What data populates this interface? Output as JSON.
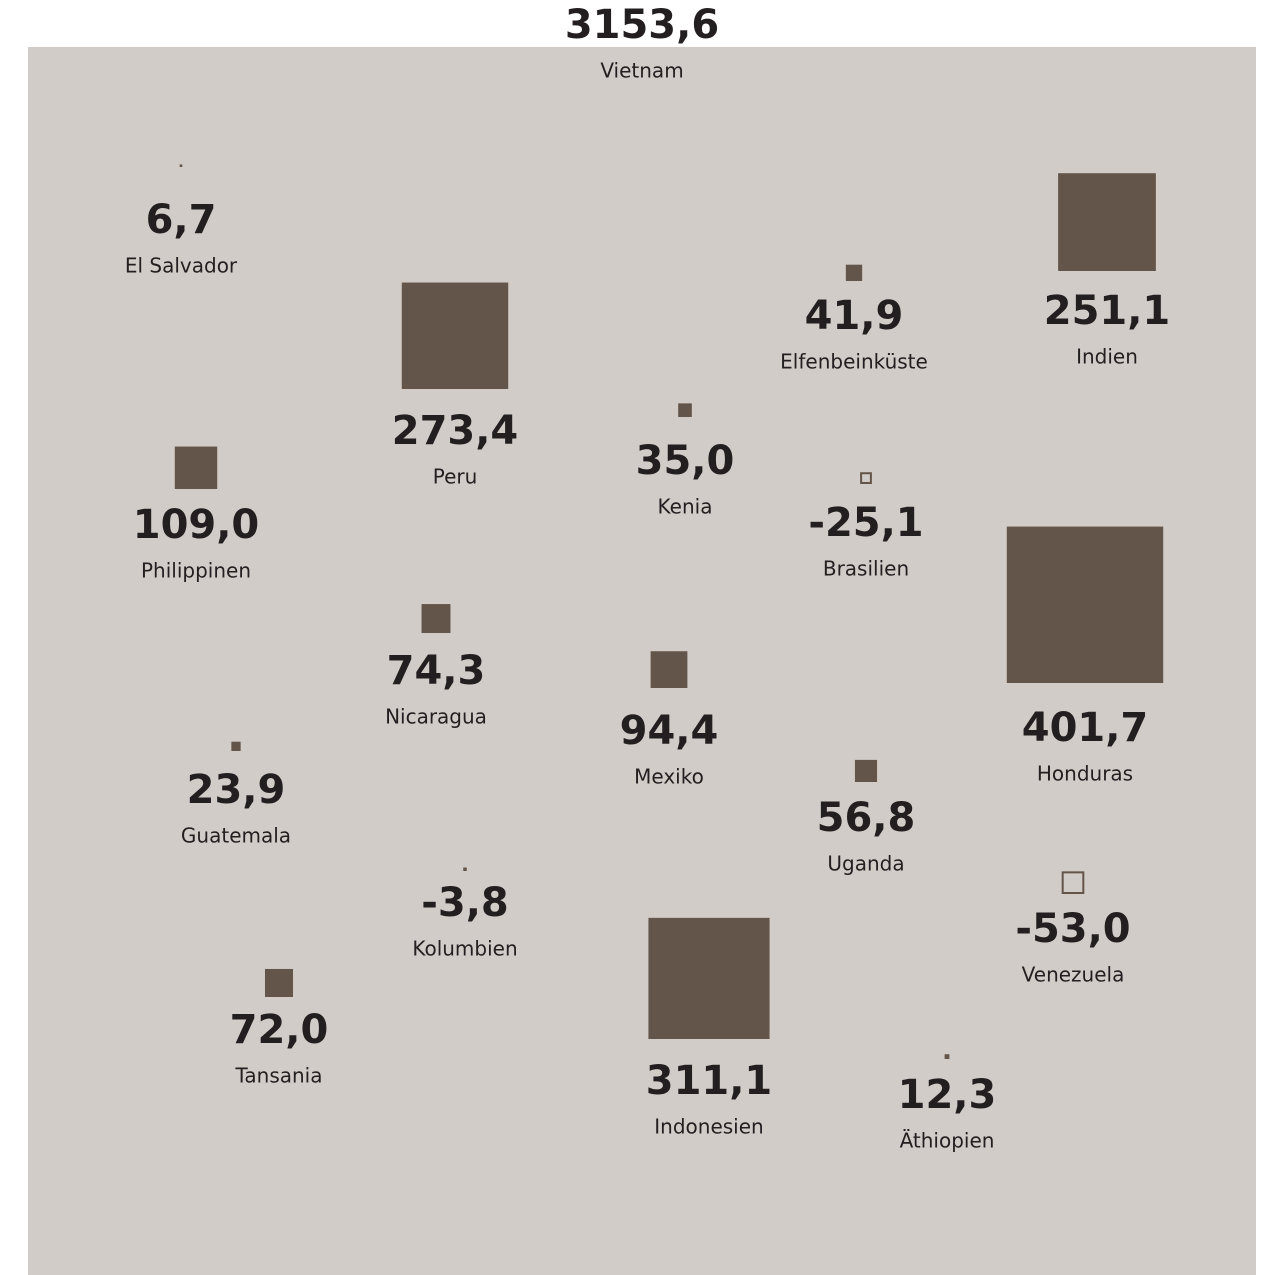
{
  "chart_data": {
    "type": "square",
    "color": "#635549",
    "categories": [
      "Vietnam",
      "El Salvador",
      "Peru",
      "Elfenbeinküste",
      "Indien",
      "Philippinen",
      "Kenia",
      "Brasilien",
      "Nicaragua",
      "Mexiko",
      "Honduras",
      "Guatemala",
      "Uganda",
      "Kolumbien",
      "Venezuela",
      "Tansania",
      "Indonesien",
      "Äthiopien"
    ],
    "values": [
      3153.6,
      6.7,
      273.4,
      41.9,
      251.1,
      109.0,
      35.0,
      -25.1,
      74.3,
      94.4,
      401.7,
      23.9,
      56.8,
      -3.8,
      -53.0,
      72.0,
      311.1,
      12.3
    ],
    "value_labels": [
      "3153,6",
      "6,7",
      "273,4",
      "41,9",
      "251,1",
      "109,0",
      "35,0",
      "-25,1",
      "74,3",
      "94,4",
      "401,7",
      "23,9",
      "56,8",
      "-3,8",
      "-53,0",
      "72,0",
      "311,1",
      "12,3"
    ]
  }
}
